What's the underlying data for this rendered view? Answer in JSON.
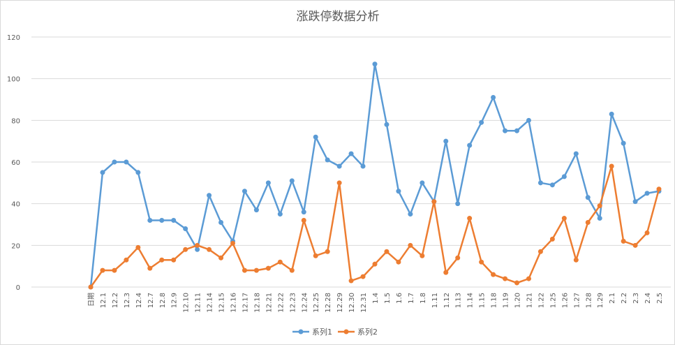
{
  "chart_data": {
    "type": "line",
    "title": "涨跌停数据分析",
    "xlabel": "",
    "ylabel": "",
    "ylim": [
      0,
      120
    ],
    "yticks": [
      0,
      20,
      40,
      60,
      80,
      100,
      120
    ],
    "grid": true,
    "legend_position": "bottom",
    "categories": [
      "日期",
      "12.1",
      "12.2",
      "12.3",
      "12.4",
      "12.7",
      "12.8",
      "12.9",
      "12.10",
      "12.11",
      "12.14",
      "12.15",
      "12.16",
      "12.17",
      "12.18",
      "12.21",
      "12.22",
      "12.23",
      "12.24",
      "12.25",
      "12.28",
      "12.29",
      "12.30",
      "12.31",
      "1.4",
      "1.5",
      "1.6",
      "1.7",
      "1.8",
      "1.11",
      "1.12",
      "1.13",
      "1.14",
      "1.15",
      "1.18",
      "1.19",
      "1.20",
      "1.21",
      "1.22",
      "1.25",
      "1.26",
      "1.27",
      "1.28",
      "1.29",
      "2.1",
      "2.2",
      "2.3",
      "2.4",
      "2.5"
    ],
    "series": [
      {
        "name": "系列1",
        "color": "#5b9bd5",
        "values": [
          0,
          55,
          60,
          60,
          55,
          32,
          32,
          32,
          28,
          18,
          44,
          31,
          22,
          46,
          37,
          50,
          35,
          51,
          36,
          72,
          61,
          58,
          64,
          58,
          107,
          78,
          46,
          35,
          50,
          41,
          70,
          40,
          68,
          79,
          91,
          75,
          75,
          80,
          50,
          49,
          53,
          64,
          43,
          33,
          83,
          69,
          41,
          45,
          46
        ]
      },
      {
        "name": "系列2",
        "color": "#ed7d31",
        "values": [
          0,
          8,
          8,
          13,
          19,
          9,
          13,
          13,
          18,
          20,
          18,
          14,
          21,
          8,
          8,
          9,
          12,
          8,
          32,
          15,
          17,
          50,
          3,
          5,
          11,
          17,
          12,
          20,
          15,
          41,
          7,
          14,
          33,
          12,
          6,
          4,
          2,
          4,
          17,
          23,
          33,
          13,
          31,
          39,
          58,
          22,
          20,
          26,
          47
        ]
      }
    ]
  }
}
